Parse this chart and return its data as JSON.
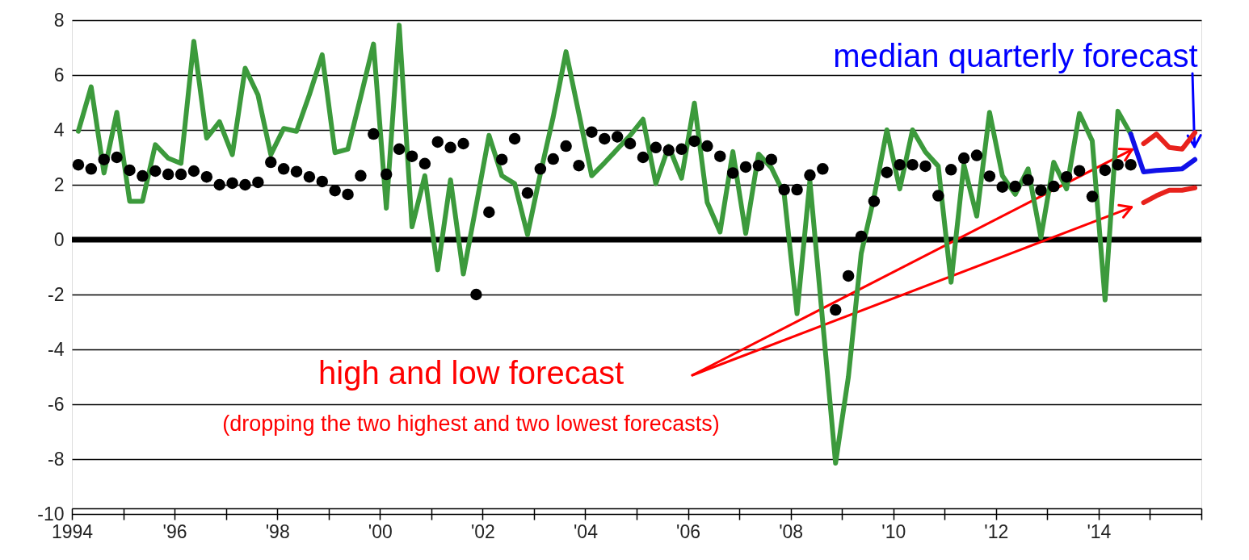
{
  "chart_data": {
    "type": "line",
    "x": [
      1994.125,
      1994.375,
      1994.625,
      1994.875,
      1995.125,
      1995.375,
      1995.625,
      1995.875,
      1996.125,
      1996.375,
      1996.625,
      1996.875,
      1997.125,
      1997.375,
      1997.625,
      1997.875,
      1998.125,
      1998.375,
      1998.625,
      1998.875,
      1999.125,
      1999.375,
      1999.625,
      1999.875,
      2000.125,
      2000.375,
      2000.625,
      2000.875,
      2001.125,
      2001.375,
      2001.625,
      2001.875,
      2002.125,
      2002.375,
      2002.625,
      2002.875,
      2003.125,
      2003.375,
      2003.625,
      2003.875,
      2004.125,
      2004.375,
      2004.625,
      2004.875,
      2005.125,
      2005.375,
      2005.625,
      2005.875,
      2006.125,
      2006.375,
      2006.625,
      2006.875,
      2007.125,
      2007.375,
      2007.625,
      2007.875,
      2008.125,
      2008.375,
      2008.625,
      2008.875,
      2009.125,
      2009.375,
      2009.625,
      2009.875,
      2010.125,
      2010.375,
      2010.625,
      2010.875,
      2011.125,
      2011.375,
      2011.625,
      2011.875,
      2012.125,
      2012.375,
      2012.625,
      2012.875,
      2013.125,
      2013.375,
      2013.625,
      2013.875,
      2014.125,
      2014.375,
      2014.625
    ],
    "series": [
      {
        "color": "#3c9a3c",
        "values": [
          3.95,
          5.57,
          2.43,
          4.64,
          1.4,
          1.4,
          3.46,
          2.97,
          2.78,
          7.23,
          3.7,
          4.3,
          3.1,
          6.25,
          5.27,
          3.1,
          4.05,
          3.95,
          5.28,
          6.74,
          3.17,
          3.3,
          5.2,
          7.13,
          1.15,
          7.82,
          0.47,
          2.33,
          -1.1,
          2.18,
          -1.25,
          1.25,
          3.8,
          2.33,
          2.04,
          0.18,
          2.4,
          4.47,
          6.85,
          4.6,
          2.33,
          2.8,
          3.3,
          3.8,
          4.39,
          2.04,
          3.4,
          2.24,
          4.98,
          1.36,
          0.28,
          3.21,
          0.23,
          3.12,
          2.62,
          1.65,
          -2.7,
          2.14,
          -3.0,
          -8.15,
          -5.0,
          -0.5,
          1.55,
          4.0,
          1.85,
          4.0,
          3.2,
          2.68,
          -1.55,
          2.73,
          0.86,
          4.64,
          2.33,
          1.65,
          2.58,
          0.08,
          2.82,
          1.85,
          4.6,
          3.6,
          -2.2,
          4.68,
          3.85
        ]
      },
      {
        "type": "scatter",
        "color": "#000000",
        "marker": "circle",
        "values": [
          2.73,
          2.58,
          2.92,
          3.0,
          2.53,
          2.32,
          2.5,
          2.38,
          2.38,
          2.5,
          2.29,
          2.0,
          2.06,
          2.0,
          2.09,
          2.82,
          2.58,
          2.48,
          2.29,
          2.12,
          1.79,
          1.65,
          2.33,
          3.85,
          2.38,
          3.3,
          3.04,
          2.77,
          3.56,
          3.36,
          3.5,
          -2.0,
          1.0,
          2.92,
          3.68,
          1.7,
          2.58,
          2.94,
          3.41,
          2.7,
          3.92,
          3.68,
          3.75,
          3.5,
          3.0,
          3.36,
          3.26,
          3.3,
          3.59,
          3.41,
          3.04,
          2.43,
          2.65,
          2.7,
          2.92,
          1.82,
          1.82,
          2.35,
          2.58,
          -2.56,
          -1.32,
          0.12,
          1.4,
          2.45,
          2.73,
          2.73,
          2.68,
          1.6,
          2.55,
          2.97,
          3.07,
          2.31,
          1.92,
          1.94,
          2.18,
          1.8,
          1.94,
          2.29,
          2.51,
          1.57,
          2.53,
          2.73,
          2.73
        ]
      },
      {
        "color": "#e8221c",
        "x": [
          2014.875,
          2015.125,
          2015.375,
          2015.625,
          2015.875
        ],
        "values": [
          3.5,
          3.85,
          3.36,
          3.3,
          3.9
        ]
      },
      {
        "color": "#e8221c",
        "x": [
          2014.875,
          2015.125,
          2015.375,
          2015.625,
          2015.875
        ],
        "values": [
          1.35,
          1.6,
          1.8,
          1.8,
          1.89
        ]
      },
      {
        "color": "#1010e8",
        "x": [
          2014.625,
          2014.875,
          2015.125,
          2015.375,
          2015.625,
          2015.875
        ],
        "values": [
          3.85,
          2.47,
          2.52,
          2.55,
          2.58,
          2.92
        ]
      }
    ],
    "xlim": [
      1994,
      2016
    ],
    "xticks": [
      {
        "value": 1994,
        "label": "1994"
      },
      {
        "value": 1995,
        "label": null
      },
      {
        "value": 1996,
        "label": "'96"
      },
      {
        "value": 1997,
        "label": null
      },
      {
        "value": 1998,
        "label": "'98"
      },
      {
        "value": 1999,
        "label": null
      },
      {
        "value": 2000,
        "label": "'00"
      },
      {
        "value": 2001,
        "label": null
      },
      {
        "value": 2002,
        "label": "'02"
      },
      {
        "value": 2003,
        "label": null
      },
      {
        "value": 2004,
        "label": "'04"
      },
      {
        "value": 2005,
        "label": null
      },
      {
        "value": 2006,
        "label": "'06"
      },
      {
        "value": 2007,
        "label": null
      },
      {
        "value": 2008,
        "label": "'08"
      },
      {
        "value": 2009,
        "label": null
      },
      {
        "value": 2010,
        "label": "'10"
      },
      {
        "value": 2011,
        "label": null
      },
      {
        "value": 2012,
        "label": "'12"
      },
      {
        "value": 2013,
        "label": null
      },
      {
        "value": 2014,
        "label": "'14"
      },
      {
        "value": 2015,
        "label": null
      },
      {
        "value": 2016,
        "label": null
      }
    ],
    "ylim": [
      -10,
      8
    ],
    "yticks": [
      -10,
      -8,
      -6,
      -4,
      -2,
      0,
      2,
      4,
      6,
      8
    ],
    "grid": "y",
    "ref_lines": [
      {
        "axis": "y",
        "value": 0,
        "color": "#000000"
      }
    ],
    "annotations": [
      "median quarterly forecast",
      "high and low forecast",
      "(dropping the two highest and two lowest forecasts)"
    ]
  }
}
